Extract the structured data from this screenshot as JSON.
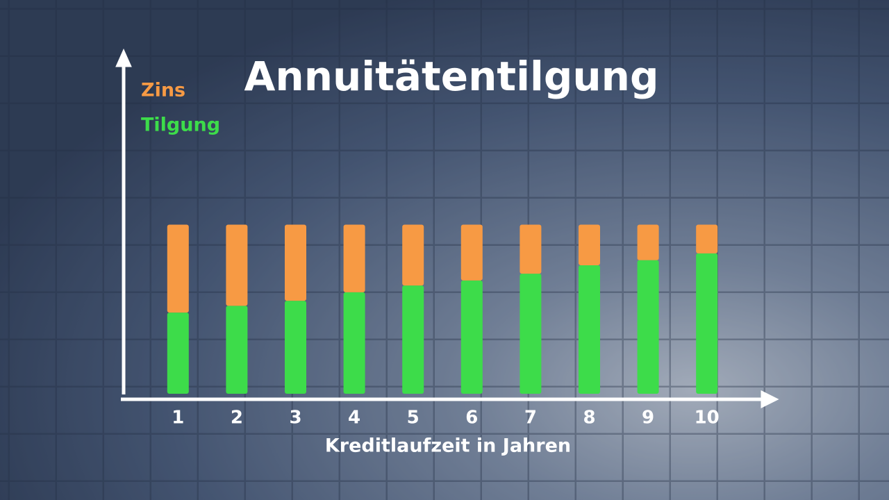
{
  "chart_data": {
    "type": "stacked-bar",
    "title": "Annuitätentilgung",
    "x_label": "Kreditlaufzeit in Jahren",
    "categories": [
      "1",
      "2",
      "3",
      "4",
      "5",
      "6",
      "7",
      "8",
      "9",
      "10"
    ],
    "series": [
      {
        "name": "Tilgung",
        "color": "#3ddc4a",
        "values": [
          48,
          52,
          55,
          60,
          64,
          67,
          71,
          76,
          79,
          83
        ]
      },
      {
        "name": "Zins",
        "color": "#f79a44",
        "values": [
          52,
          48,
          45,
          40,
          36,
          33,
          29,
          24,
          21,
          17
        ]
      }
    ],
    "ylim": [
      0,
      200
    ]
  }
}
